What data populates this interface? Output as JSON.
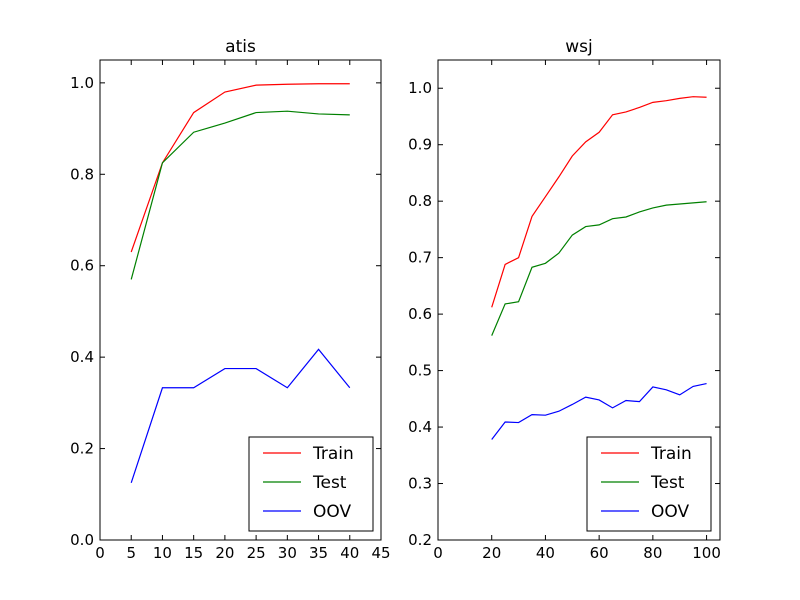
{
  "chart_data": [
    {
      "type": "line",
      "title": "atis",
      "xlabel": "",
      "ylabel": "",
      "xlim": [
        0,
        45
      ],
      "ylim": [
        0.0,
        1.05
      ],
      "xticks": [
        0,
        5,
        10,
        15,
        20,
        25,
        30,
        35,
        40,
        45
      ],
      "yticks": [
        0.0,
        0.2,
        0.4,
        0.6,
        0.8,
        1.0
      ],
      "xtick_labels": [
        "0",
        "5",
        "10",
        "15",
        "20",
        "25",
        "30",
        "35",
        "40",
        "45"
      ],
      "ytick_labels": [
        "0.0",
        "0.2",
        "0.4",
        "0.6",
        "0.8",
        "1.0"
      ],
      "grid": false,
      "legend_position": "lower-right",
      "series": [
        {
          "name": "Train",
          "color": "#ff0000",
          "x": [
            5,
            10,
            15,
            20,
            25,
            30,
            35,
            40
          ],
          "y": [
            0.63,
            0.825,
            0.935,
            0.98,
            0.995,
            0.997,
            0.998,
            0.998
          ]
        },
        {
          "name": "Test",
          "color": "#008000",
          "x": [
            5,
            10,
            15,
            20,
            25,
            30,
            35,
            40
          ],
          "y": [
            0.57,
            0.825,
            0.892,
            0.912,
            0.935,
            0.938,
            0.932,
            0.93
          ]
        },
        {
          "name": "OOV",
          "color": "#0000ff",
          "x": [
            5,
            10,
            15,
            20,
            25,
            30,
            35,
            40
          ],
          "y": [
            0.125,
            0.333,
            0.333,
            0.375,
            0.375,
            0.333,
            0.417,
            0.333
          ]
        }
      ]
    },
    {
      "type": "line",
      "title": "wsj",
      "xlabel": "",
      "ylabel": "",
      "xlim": [
        0,
        105
      ],
      "ylim": [
        0.2,
        1.05
      ],
      "xticks": [
        0,
        20,
        40,
        60,
        80,
        100
      ],
      "yticks": [
        0.2,
        0.3,
        0.4,
        0.5,
        0.6,
        0.7,
        0.8,
        0.9,
        1.0
      ],
      "xtick_labels": [
        "0",
        "20",
        "40",
        "60",
        "80",
        "100"
      ],
      "ytick_labels": [
        "0.2",
        "0.3",
        "0.4",
        "0.5",
        "0.6",
        "0.7",
        "0.8",
        "0.9",
        "1.0"
      ],
      "grid": false,
      "legend_position": "lower-right",
      "series": [
        {
          "name": "Train",
          "color": "#ff0000",
          "x": [
            20,
            25,
            30,
            35,
            40,
            45,
            50,
            55,
            60,
            65,
            70,
            75,
            80,
            85,
            90,
            95,
            100
          ],
          "y": [
            0.612,
            0.688,
            0.7,
            0.773,
            0.808,
            0.843,
            0.88,
            0.905,
            0.922,
            0.953,
            0.958,
            0.966,
            0.975,
            0.978,
            0.982,
            0.985,
            0.984
          ]
        },
        {
          "name": "Test",
          "color": "#008000",
          "x": [
            20,
            25,
            30,
            35,
            40,
            45,
            50,
            55,
            60,
            65,
            70,
            75,
            80,
            85,
            90,
            95,
            100
          ],
          "y": [
            0.562,
            0.618,
            0.622,
            0.683,
            0.69,
            0.708,
            0.74,
            0.755,
            0.758,
            0.769,
            0.772,
            0.781,
            0.788,
            0.793,
            0.795,
            0.797,
            0.799
          ]
        },
        {
          "name": "OOV",
          "color": "#0000ff",
          "x": [
            20,
            25,
            30,
            35,
            40,
            45,
            50,
            55,
            60,
            65,
            70,
            75,
            80,
            85,
            90,
            95,
            100
          ],
          "y": [
            0.378,
            0.409,
            0.408,
            0.422,
            0.421,
            0.428,
            0.44,
            0.453,
            0.448,
            0.434,
            0.447,
            0.445,
            0.471,
            0.466,
            0.457,
            0.472,
            0.477
          ]
        }
      ]
    }
  ]
}
